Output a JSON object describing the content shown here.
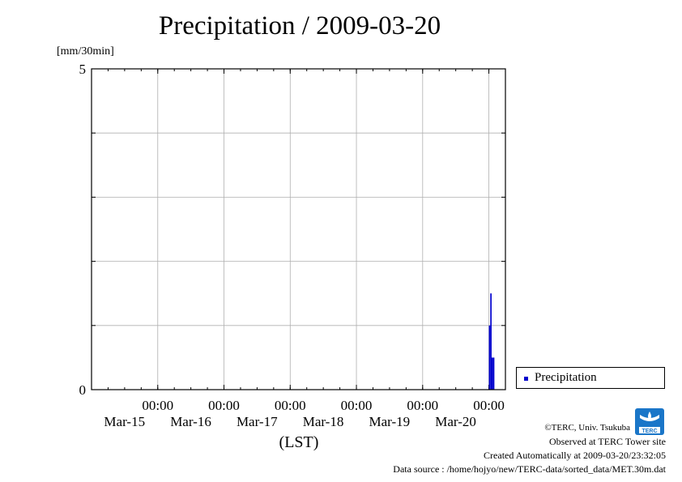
{
  "title": "Precipitation / 2009-03-20",
  "unit_label": "[mm/30min]",
  "legend": {
    "label": "Precipitation"
  },
  "credits": {
    "copyright": "©TERC, Univ. Tsukuba",
    "observed": "Observed at TERC Tower site",
    "created": "Created Automatically at 2009-03-20/23:32:05",
    "source": "Data source : /home/hojyo/new/TERC-data/sorted_data/MET.30m.dat"
  },
  "logo": {
    "text": "TERC",
    "icon": "terc-logo-icon"
  },
  "chart_data": {
    "type": "bar",
    "title": "Precipitation / 2009-03-20",
    "ylabel": "[mm/30min]",
    "xlabel": "(LST)",
    "ylim": [
      0,
      5
    ],
    "yticks": [
      "0",
      "5"
    ],
    "x_range": [
      "2009-03-14 00:00",
      "2009-03-20 06:00"
    ],
    "x_ticks": [
      {
        "time": "00:00",
        "date": "Mar-15"
      },
      {
        "time": "00:00",
        "date": "Mar-16"
      },
      {
        "time": "00:00",
        "date": "Mar-17"
      },
      {
        "time": "00:00",
        "date": "Mar-18"
      },
      {
        "time": "00:00",
        "date": "Mar-19"
      },
      {
        "time": "00:00",
        "date": "Mar-20"
      }
    ],
    "grid": true,
    "legend_position": "bottom-right outside",
    "color": "#0000cc",
    "series": [
      {
        "name": "Precipitation",
        "points": [
          {
            "t": "2009-03-20 00:30",
            "v": 1.0
          },
          {
            "t": "2009-03-20 01:00",
            "v": 1.5
          },
          {
            "t": "2009-03-20 01:30",
            "v": 0.5
          },
          {
            "t": "2009-03-20 02:00",
            "v": 0.5
          }
        ]
      }
    ]
  }
}
